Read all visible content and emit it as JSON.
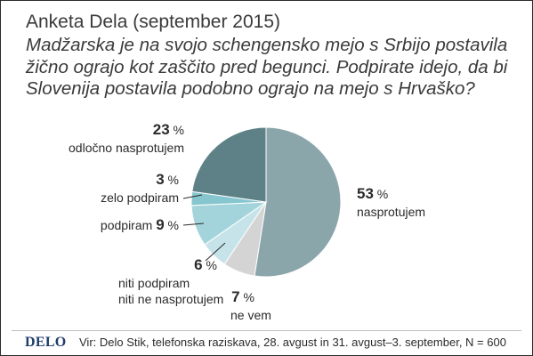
{
  "title": "Anketa Dela (september 2015)",
  "question": "Madžarska je na svojo schengensko mejo s Srbijo postavila žično ograjo kot zaščito pred begunci. Podpirate idejo, da bi Slovenija postavila podobno ograjo na mejo s Hrvaško?",
  "footer": {
    "logo": "DELO",
    "source": "Vir: Delo Stik, telefonska raziskava, 28. avgust in 31. avgust–3. september, N = 600"
  },
  "chart_data": {
    "type": "pie",
    "unit": "%",
    "slices": [
      {
        "label": "nasprotujem",
        "value": 53,
        "color": "#8aa6ab"
      },
      {
        "label": "ne vem",
        "value": 7,
        "color": "#d4d4d4"
      },
      {
        "label": "niti podpiram niti ne nasprotujem",
        "value": 6,
        "color": "#c5e3e8"
      },
      {
        "label": "podpiram",
        "value": 9,
        "color": "#a4d4db"
      },
      {
        "label": "zelo podpiram",
        "value": 3,
        "color": "#86c6cf"
      },
      {
        "label": "odločno nasprotujem",
        "value": 23,
        "color": "#5e8187"
      }
    ],
    "labels": [
      {
        "value": "53",
        "pct": "%",
        "lines": [
          "nasprotujem"
        ]
      },
      {
        "value": "7",
        "pct": "%",
        "lines": [
          "ne vem"
        ]
      },
      {
        "value": "6",
        "pct": "%",
        "lines": [
          "niti podpiram",
          "niti ne nasprotujem"
        ]
      },
      {
        "value": "9",
        "pct": "%",
        "lines": [
          "podpiram"
        ]
      },
      {
        "value": "3",
        "pct": "%",
        "lines": [
          "zelo podpiram"
        ]
      },
      {
        "value": "23",
        "pct": "%",
        "lines": [
          "odločno nasprotujem"
        ]
      }
    ]
  }
}
